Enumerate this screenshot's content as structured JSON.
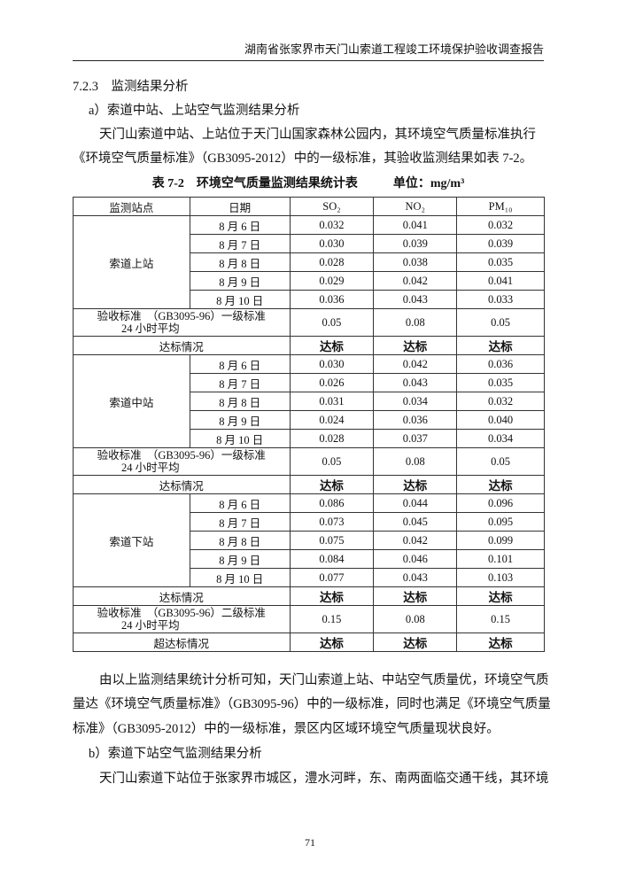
{
  "header": "湖南省张家界市天门山索道工程竣工环境保护验收调查报告",
  "section_title": "7.2.3　监测结果分析",
  "sub_a": "a）索道中站、上站空气监测结果分析",
  "para1": [
    "天门山索道中站、上站位于天门山国家森林公园内，其环境空气质量标准执行",
    "《环境空气质量标准》（GB3095-2012）中的一级标准，其验收监测结果如表 7-2。"
  ],
  "table_caption": "表 7-2　环境空气质量监测结果统计表",
  "table_unit": "单位：mg/m³",
  "columns": [
    "监测站点",
    "日期",
    "SO₂",
    "NO₂",
    "PM₁₀"
  ],
  "stations": [
    {
      "name": "索道上站",
      "rows": [
        [
          "8 月 6 日",
          "0.032",
          "0.041",
          "0.032"
        ],
        [
          "8 月 7 日",
          "0.030",
          "0.039",
          "0.039"
        ],
        [
          "8 月 8 日",
          "0.028",
          "0.038",
          "0.035"
        ],
        [
          "8 月 9 日",
          "0.029",
          "0.042",
          "0.041"
        ],
        [
          "8 月 10 日",
          "0.036",
          "0.043",
          "0.033"
        ]
      ],
      "standard_label": [
        "验收标准　（GB3095-96）一级标准",
        "24 小时平均"
      ],
      "standard": [
        "0.05",
        "0.08",
        "0.05"
      ],
      "result_label": "达标情况",
      "result": [
        "达标",
        "达标",
        "达标"
      ]
    },
    {
      "name": "索道中站",
      "rows": [
        [
          "8 月 6 日",
          "0.030",
          "0.042",
          "0.036"
        ],
        [
          "8 月 7 日",
          "0.026",
          "0.043",
          "0.035"
        ],
        [
          "8 月 8 日",
          "0.031",
          "0.034",
          "0.032"
        ],
        [
          "8 月 9 日",
          "0.024",
          "0.036",
          "0.040"
        ],
        [
          "8 月 10 日",
          "0.028",
          "0.037",
          "0.034"
        ]
      ],
      "standard_label": [
        "验收标准　（GB3095-96）一级标准",
        "24 小时平均"
      ],
      "standard": [
        "0.05",
        "0.08",
        "0.05"
      ],
      "result_label": "达标情况",
      "result": [
        "达标",
        "达标",
        "达标"
      ]
    },
    {
      "name": "索道下站",
      "rows": [
        [
          "8 月 6 日",
          "0.086",
          "0.044",
          "0.096"
        ],
        [
          "8 月 7 日",
          "0.073",
          "0.045",
          "0.095"
        ],
        [
          "8 月 8 日",
          "0.075",
          "0.042",
          "0.099"
        ],
        [
          "8 月 9 日",
          "0.084",
          "0.046",
          "0.101"
        ],
        [
          "8 月 10 日",
          "0.077",
          "0.043",
          "0.103"
        ]
      ],
      "result_label": "达标情况",
      "result": [
        "达标",
        "达标",
        "达标"
      ],
      "standard_label": [
        "验收标准　（GB3095-96）二级标准",
        "24 小时平均"
      ],
      "standard": [
        "0.15",
        "0.08",
        "0.15"
      ],
      "result2_label": "超达标情况",
      "result2": [
        "达标",
        "达标",
        "达标"
      ]
    }
  ],
  "para2": [
    "由以上监测结果统计分析可知，天门山索道上站、中站空气质量优，环境空气质",
    "量达《环境空气质量标准》（GB3095-96）中的一级标准，同时也满足《环境空气质量",
    "标准》（GB3095-2012）中的一级标准，景区内区域环境空气质量现状良好。"
  ],
  "sub_b": "b）索道下站空气监测结果分析",
  "para3": "天门山索道下站位于张家界市城区，澧水河畔，东、南两面临交通干线，其环境",
  "page_number": "71"
}
